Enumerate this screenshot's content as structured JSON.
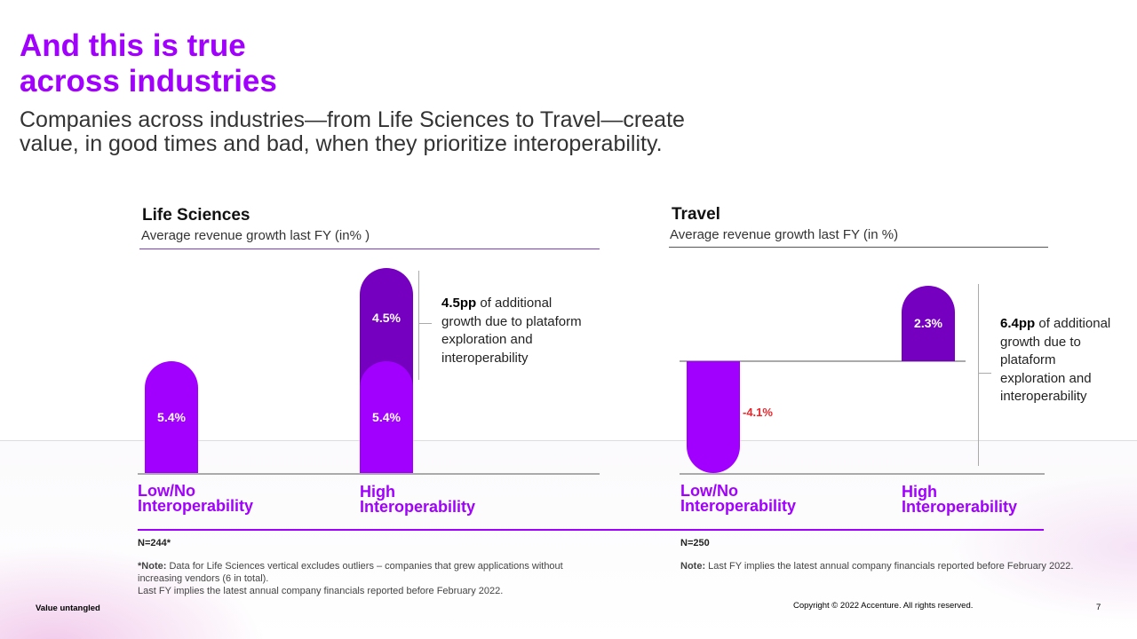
{
  "slide": {
    "title_line1": "And this is true",
    "title_line2": "across industries",
    "subtitle": "Companies across industries—from Life Sciences to Travel—create value, in good times and bad, when they prioritize interoperability.",
    "footer_left": "Value untangled",
    "copyright": "Copyright © 2022 Accenture. All rights reserved.",
    "page_number": "7"
  },
  "colors": {
    "accent": "#a100ff",
    "dark_purple": "#7500c0",
    "negative_label": "#e8272d"
  },
  "chart_data": [
    {
      "type": "bar",
      "title": "Life Sciences",
      "subtitle": "Average revenue growth last FY (in% )",
      "categories": [
        "Low/No Interoperability",
        "High Interoperability"
      ],
      "category_lines": [
        [
          "Low/No",
          "Interoperability"
        ],
        [
          "High",
          "Interoperability"
        ]
      ],
      "series": [
        {
          "name": "base",
          "values": [
            5.4,
            5.4
          ],
          "labels": [
            "5.4%",
            "5.4%"
          ]
        },
        {
          "name": "additional",
          "values": [
            0,
            4.5
          ],
          "labels": [
            "",
            "4.5%"
          ]
        }
      ],
      "annotation_bold": "4.5pp",
      "annotation_text": " of additional growth due to plataform exploration and interoperability",
      "n_label": "N=244*",
      "note_bold": "*Note:",
      "note_text": " Data for Life Sciences vertical excludes outliers – companies that grew applications without increasing vendors (6 in total).",
      "note_text2": "Last FY implies the latest annual company financials reported before February 2022."
    },
    {
      "type": "bar",
      "title": "Travel",
      "subtitle": "Average revenue growth last FY (in %)",
      "categories": [
        "Low/No Interoperability",
        "High Interoperability"
      ],
      "category_lines": [
        [
          "Low/No",
          "Interoperability"
        ],
        [
          "High",
          "Interoperability"
        ]
      ],
      "series": [
        {
          "name": "growth",
          "values": [
            -4.1,
            2.3
          ],
          "labels": [
            "-4.1%",
            "2.3%"
          ]
        }
      ],
      "annotation_bold": "6.4pp",
      "annotation_text": " of additional growth due to plataform exploration and interoperability",
      "n_label": "N=250",
      "note_bold": "Note:",
      "note_text": " Last FY implies the latest annual company financials reported before February 2022."
    }
  ]
}
